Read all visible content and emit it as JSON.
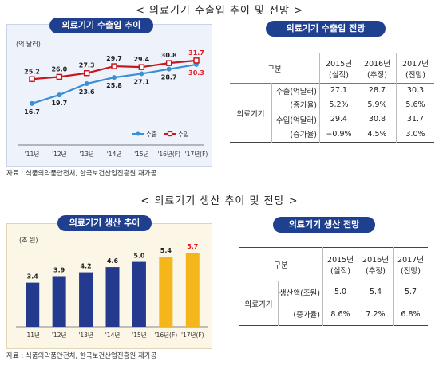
{
  "trade": {
    "section_title": "< 의료기기 수출입 추이 및 전망 >",
    "chart_pill": "의료기기 수출입 추이",
    "unit": "(억 달러)",
    "source": "자료 : 식품의약품안전처, 한국보건산업진흥원 재가공",
    "table_pill": "의료기기 수출입 전망",
    "table": {
      "h_category": "구분",
      "cols": [
        {
          "year": "2015년",
          "sub": "(실적)"
        },
        {
          "year": "2016년",
          "sub": "(추정)"
        },
        {
          "year": "2017년",
          "sub": "(전망)"
        }
      ],
      "group": "의료기기",
      "rows": [
        {
          "label": "수출(억달러)",
          "values": [
            "27.1",
            "28.7",
            "30.3"
          ]
        },
        {
          "label": "(증가율)",
          "values": [
            "5.2%",
            "5.9%",
            "5.6%"
          ]
        },
        {
          "label": "수입(억달러)",
          "values": [
            "29.4",
            "30.8",
            "31.7"
          ]
        },
        {
          "label": "(증가율)",
          "values": [
            "−0.9%",
            "4.5%",
            "3.0%"
          ]
        }
      ]
    }
  },
  "production": {
    "section_title": "< 의료기기 생산 추이 및 전망 >",
    "chart_pill": "의료기기 생산 추이",
    "unit": "(조 원)",
    "source": "자료 : 식품의약품안전처, 한국보건산업진흥원 재가공",
    "table_pill": "의료기기 생산 전망",
    "table": {
      "h_category": "구분",
      "cols": [
        {
          "year": "2015년",
          "sub": "(실적)"
        },
        {
          "year": "2016년",
          "sub": "(추정)"
        },
        {
          "year": "2017년",
          "sub": "(전망)"
        }
      ],
      "group": "의료기기",
      "rows": [
        {
          "label": "생산액(조원)",
          "values": [
            "5.0",
            "5.4",
            "5.7"
          ]
        },
        {
          "label": "(증가율)",
          "values": [
            "8.6%",
            "7.2%",
            "6.8%"
          ]
        }
      ]
    }
  },
  "chart_data": [
    {
      "type": "line",
      "categories": [
        "'11년",
        "'12년",
        "'13년",
        "'14년",
        "'15년",
        "'16년(F)",
        "'17년(F)"
      ],
      "series": [
        {
          "name": "수출",
          "values": [
            16.7,
            19.7,
            23.6,
            25.8,
            27.1,
            28.7,
            30.3
          ],
          "color": "#3b8fd6",
          "label_color": "#222222"
        },
        {
          "name": "수입",
          "values": [
            25.2,
            26.0,
            27.3,
            29.7,
            29.4,
            30.8,
            31.7
          ],
          "color": "#c8171c",
          "label_color": "#222222"
        }
      ],
      "highlight_label_color": "#e0171c",
      "ylim": [
        10,
        35
      ],
      "grid": false,
      "legend": "bottom-right"
    },
    {
      "type": "bar",
      "categories": [
        "'11년",
        "'12년",
        "'13년",
        "'14년",
        "'15년",
        "'16년(F)",
        "'17년(F)"
      ],
      "values": [
        3.4,
        3.9,
        4.2,
        4.6,
        5.0,
        5.4,
        5.7
      ],
      "colors": [
        "#233a8f",
        "#233a8f",
        "#233a8f",
        "#233a8f",
        "#233a8f",
        "#f4b61a",
        "#f4b61a"
      ],
      "label_colors": [
        "#222222",
        "#222222",
        "#222222",
        "#222222",
        "#222222",
        "#222222",
        "#e0171c"
      ],
      "ylim": [
        0,
        7
      ],
      "grid": false
    }
  ]
}
